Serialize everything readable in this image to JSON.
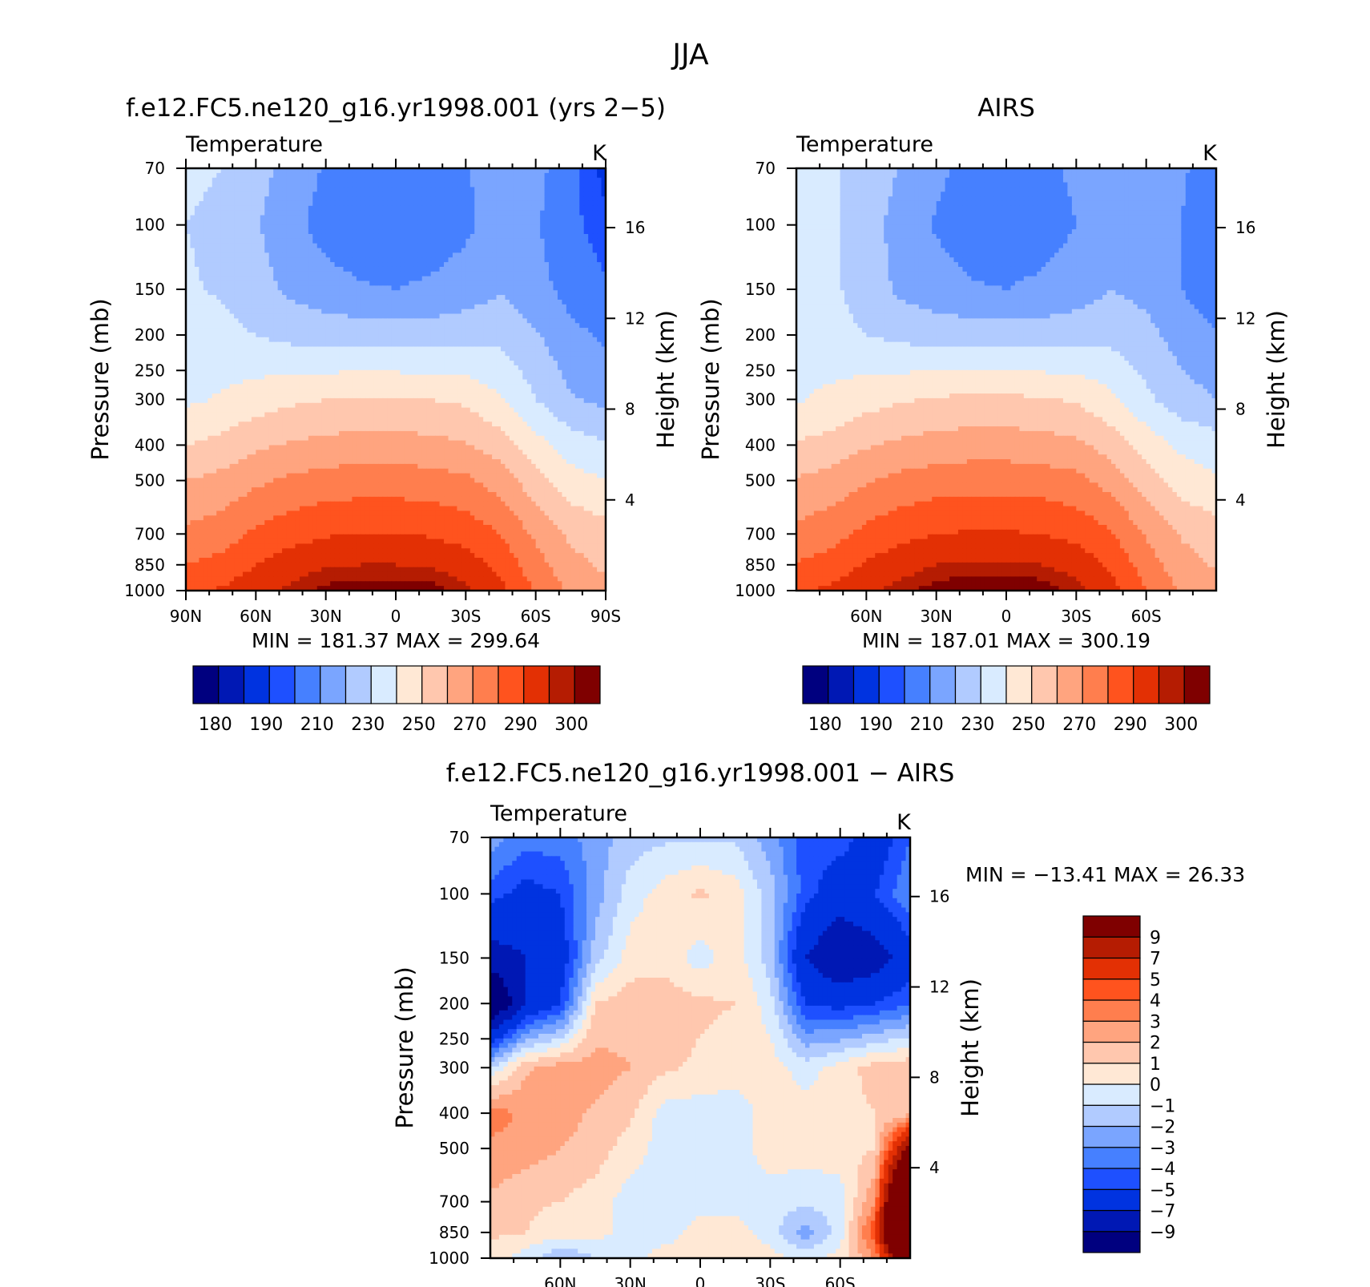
{
  "figure": {
    "season": "JJA",
    "field_label": "Temperature",
    "units": "K",
    "left_axis_label": "Pressure  (mb)",
    "right_axis_label": "Height  (km)"
  },
  "chart_data": [
    {
      "type": "heatmap",
      "title": "f.e12.FC5.ne120_g16.yr1998.001 (yrs 2−5)",
      "min_label": "MIN  =  181.37",
      "max_label": "MAX  =  299.64",
      "x_ticks": [
        "90N",
        "60N",
        "30N",
        "0",
        "30S",
        "60S",
        "90S"
      ],
      "y_ticks": [
        "70",
        "100",
        "150",
        "200",
        "250",
        "300",
        "400",
        "500",
        "700",
        "850",
        "1000"
      ],
      "height_ticks": [
        "16",
        "12",
        "8",
        "4"
      ],
      "levels": [
        175,
        180,
        185,
        190,
        200,
        210,
        220,
        230,
        240,
        250,
        260,
        270,
        280,
        290,
        295,
        300
      ],
      "colorbar_labels": [
        "180",
        "190",
        "210",
        "230",
        "250",
        "270",
        "290",
        "300"
      ],
      "colors": [
        "#00007f",
        "#0018b4",
        "#0033e0",
        "#1e50ff",
        "#4680ff",
        "#7aa5ff",
        "#b1cbff",
        "#d9ebff",
        "#ffe8d5",
        "#ffc7ae",
        "#ffa47f",
        "#ff7e4e",
        "#ff531e",
        "#e33004",
        "#b51c02",
        "#7f0000"
      ],
      "latitudes": [
        90,
        75,
        60,
        45,
        30,
        15,
        0,
        -15,
        -30,
        -45,
        -60,
        -75,
        -90
      ],
      "pressure_mb": [
        70,
        100,
        150,
        200,
        300,
        400,
        500,
        700,
        850,
        1000
      ],
      "temperature_K": [
        [
          222,
          220,
          214,
          206,
          199,
          193,
          191,
          193,
          199,
          206,
          204,
          192,
          183
        ],
        [
          220,
          218,
          211,
          203,
          196,
          193,
          192,
          193,
          198,
          205,
          201,
          192,
          186
        ],
        [
          221,
          219,
          214,
          208,
          204,
          201,
          200,
          202,
          205,
          209,
          204,
          196,
          191
        ],
        [
          224,
          223,
          220,
          217,
          216,
          215,
          215,
          215,
          216,
          217,
          211,
          203,
          198
        ],
        [
          228,
          231,
          235,
          238,
          240,
          241,
          241,
          240,
          238,
          231,
          220,
          211,
          207
        ],
        [
          240,
          243,
          248,
          251,
          253,
          254,
          254,
          253,
          251,
          245,
          234,
          225,
          221
        ],
        [
          250,
          253,
          258,
          262,
          264,
          265,
          265,
          264,
          262,
          255,
          244,
          234,
          230
        ],
        [
          262,
          265,
          272,
          276,
          279,
          280,
          280,
          279,
          276,
          270,
          258,
          248,
          244
        ],
        [
          270,
          273,
          280,
          285,
          289,
          290,
          290,
          289,
          285,
          277,
          264,
          253,
          248
        ],
        [
          278,
          281,
          287,
          292,
          297,
          299,
          299,
          298,
          292,
          283,
          269,
          258,
          254
        ]
      ]
    },
    {
      "type": "heatmap",
      "title": "AIRS",
      "min_label": "MIN  =  187.01",
      "max_label": "MAX  =  300.19",
      "x_ticks": [
        "60N",
        "30N",
        "0",
        "30S",
        "60S"
      ],
      "y_ticks": [
        "70",
        "100",
        "150",
        "200",
        "250",
        "300",
        "400",
        "500",
        "700",
        "850",
        "1000"
      ],
      "height_ticks": [
        "16",
        "12",
        "8",
        "4"
      ],
      "levels": [
        175,
        180,
        185,
        190,
        200,
        210,
        220,
        230,
        240,
        250,
        260,
        270,
        280,
        290,
        295,
        300
      ],
      "colorbar_labels": [
        "180",
        "190",
        "210",
        "230",
        "250",
        "270",
        "290",
        "300"
      ],
      "colors": [
        "#00007f",
        "#0018b4",
        "#0033e0",
        "#1e50ff",
        "#4680ff",
        "#7aa5ff",
        "#b1cbff",
        "#d9ebff",
        "#ffe8d5",
        "#ffc7ae",
        "#ffa47f",
        "#ff7e4e",
        "#ff531e",
        "#e33004",
        "#b51c02",
        "#7f0000"
      ],
      "latitudes": [
        90,
        75,
        60,
        45,
        30,
        15,
        0,
        -15,
        -30,
        -45,
        -60,
        -75,
        -90
      ],
      "pressure_mb": [
        70,
        100,
        150,
        200,
        300,
        400,
        500,
        700,
        850,
        1000
      ],
      "temperature_K": [
        [
          222,
          221,
          217,
          209,
          202,
          197,
          195,
          197,
          202,
          210,
          208,
          201,
          196
        ],
        [
          225,
          222,
          214,
          206,
          199,
          195,
          194,
          195,
          200,
          208,
          206,
          200,
          194
        ],
        [
          226,
          222,
          215,
          208,
          204,
          201,
          200,
          202,
          205,
          210,
          207,
          200,
          194
        ],
        [
          227,
          224,
          220,
          217,
          216,
          215,
          215,
          215,
          216,
          217,
          213,
          206,
          201
        ],
        [
          229,
          232,
          236,
          239,
          241,
          242,
          242,
          241,
          239,
          232,
          222,
          214,
          210
        ],
        [
          241,
          244,
          249,
          252,
          254,
          255,
          255,
          254,
          252,
          246,
          236,
          228,
          225
        ],
        [
          251,
          254,
          259,
          263,
          265,
          266,
          266,
          265,
          263,
          256,
          245,
          235,
          231
        ],
        [
          263,
          266,
          273,
          277,
          280,
          281,
          281,
          280,
          277,
          271,
          259,
          249,
          245
        ],
        [
          271,
          274,
          281,
          286,
          290,
          291,
          291,
          290,
          286,
          278,
          265,
          254,
          249
        ],
        [
          279,
          282,
          288,
          293,
          298,
          300,
          300,
          299,
          293,
          284,
          270,
          259,
          255
        ]
      ]
    },
    {
      "type": "heatmap",
      "title": "f.e12.FC5.ne120_g16.yr1998.001  −  AIRS",
      "min_label": "MIN  =  −13.41",
      "max_label": "MAX  =   26.33",
      "x_ticks": [
        "60N",
        "30N",
        "0",
        "30S",
        "60S"
      ],
      "y_ticks": [
        "70",
        "100",
        "150",
        "200",
        "250",
        "300",
        "400",
        "500",
        "700",
        "850",
        "1000"
      ],
      "height_ticks": [
        "16",
        "12",
        "8",
        "4"
      ],
      "levels": [
        -9,
        -7,
        -5,
        -4,
        -3,
        -2,
        -1,
        0,
        1,
        2,
        3,
        4,
        5,
        7,
        9
      ],
      "colorbar_labels": [
        "−9",
        "−7",
        "−5",
        "−4",
        "−3",
        "−2",
        "−1",
        "0",
        "1",
        "2",
        "3",
        "4",
        "5",
        "7",
        "9"
      ],
      "colors": [
        "#00007f",
        "#0018b4",
        "#0033e0",
        "#1e50ff",
        "#4680ff",
        "#7aa5ff",
        "#b1cbff",
        "#d9ebff",
        "#ffe8d5",
        "#ffc7ae",
        "#ffa47f",
        "#ff7e4e",
        "#ff531e",
        "#e33004",
        "#b51c02",
        "#7f0000"
      ],
      "latitudes": [
        90,
        75,
        60,
        45,
        30,
        15,
        0,
        -15,
        -30,
        -45,
        -60,
        -75,
        -90
      ],
      "pressure_mb": [
        70,
        100,
        150,
        200,
        300,
        400,
        500,
        700,
        850,
        1000
      ],
      "difference_K": [
        [
          -2.5,
          -3.5,
          -3.5,
          -2.5,
          -1.5,
          -1.2,
          -1.2,
          -1.2,
          -2.5,
          -4.5,
          -4.5,
          -6,
          -4
        ],
        [
          -4.5,
          -5.5,
          -5,
          -2.5,
          -0.5,
          0.5,
          1.2,
          0.5,
          -1.5,
          -4.5,
          -6,
          -5,
          -3
        ],
        [
          -8,
          -7,
          -6,
          -1.5,
          0.5,
          0.6,
          -0.5,
          0.6,
          -1.5,
          -7,
          -9,
          -8,
          -6
        ],
        [
          -12,
          -7,
          -5,
          1,
          1.5,
          1.6,
          1.2,
          1,
          -0.5,
          -5,
          -5.5,
          -5,
          -4
        ],
        [
          -1,
          1.8,
          2.5,
          2.5,
          2,
          1.2,
          0.8,
          0.5,
          0.5,
          -0.5,
          0.5,
          1.5,
          1.8
        ],
        [
          3.5,
          2.8,
          2.5,
          1.8,
          1.2,
          -0.5,
          -0.5,
          -0.6,
          0.5,
          0.5,
          0.5,
          1,
          1.5
        ],
        [
          2.8,
          2.5,
          2,
          1.5,
          0.5,
          -0.5,
          -0.5,
          -0.5,
          0.5,
          0.5,
          0.5,
          1,
          10
        ],
        [
          1.8,
          1.2,
          1,
          0.5,
          -0.5,
          -0.5,
          -0.5,
          -0.5,
          -0.5,
          -0.8,
          -0.5,
          3,
          22
        ],
        [
          1.2,
          1,
          0.5,
          0.5,
          -0.5,
          -0.5,
          0.5,
          0.5,
          -0.5,
          -2.5,
          -0.5,
          5,
          26
        ],
        [
          0.5,
          -0.5,
          -2,
          -1,
          -0.5,
          0.5,
          0.5,
          0.5,
          0.5,
          -0.5,
          0.5,
          3,
          14
        ]
      ]
    }
  ]
}
